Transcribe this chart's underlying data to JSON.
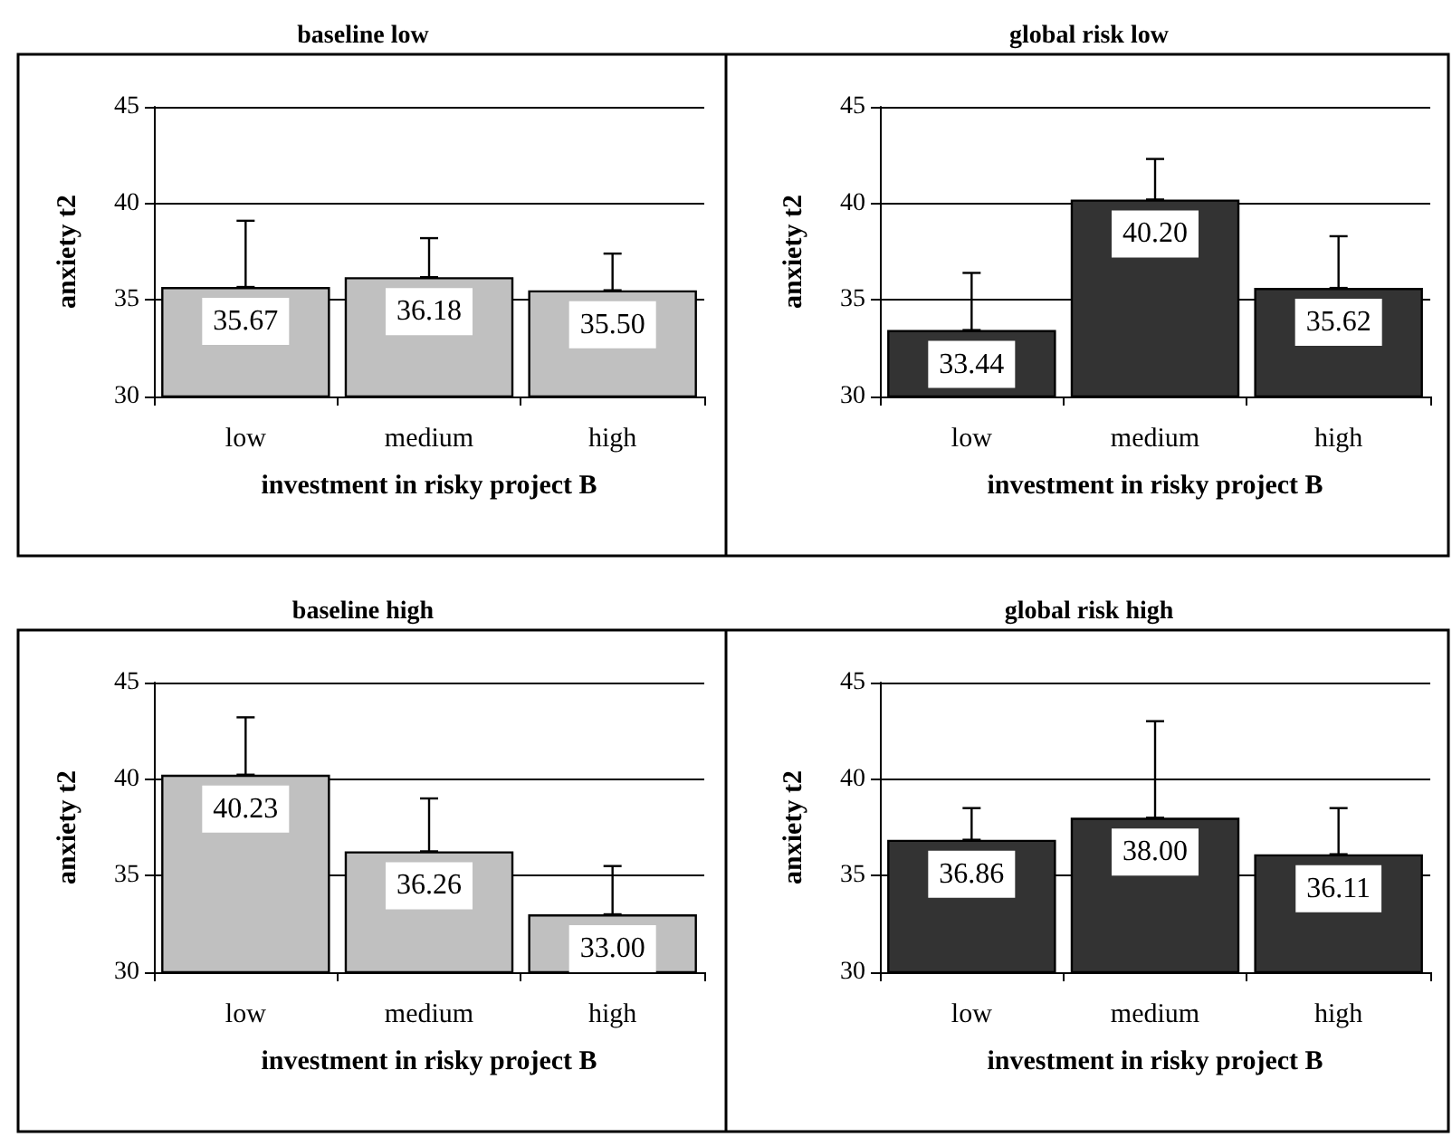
{
  "chart_data": [
    {
      "type": "bar",
      "title": "baseline low",
      "xlabel": "investment in risky project B",
      "ylabel": "anxiety t2",
      "categories": [
        "low",
        "medium",
        "high"
      ],
      "values": [
        35.67,
        36.18,
        35.5
      ],
      "value_labels": [
        "35.67",
        "36.18",
        "35.50"
      ],
      "color": "#c0c0c0",
      "errors": [
        [
          35.67,
          39.1
        ],
        [
          36.18,
          38.2
        ],
        [
          35.5,
          37.4
        ]
      ],
      "ylim": [
        30,
        45
      ],
      "yticks": [
        30,
        35,
        40,
        45
      ],
      "grid": "y"
    },
    {
      "type": "bar",
      "title": "global risk low",
      "xlabel": "investment in risky project B",
      "ylabel": "anxiety t2",
      "categories": [
        "low",
        "medium",
        "high"
      ],
      "values": [
        33.44,
        40.2,
        35.62
      ],
      "value_labels": [
        "33.44",
        "40.20",
        "35.62"
      ],
      "color": "#333333",
      "errors": [
        [
          33.44,
          36.4
        ],
        [
          40.2,
          42.3
        ],
        [
          35.62,
          38.3
        ]
      ],
      "ylim": [
        30,
        45
      ],
      "yticks": [
        30,
        35,
        40,
        45
      ],
      "grid": "y"
    },
    {
      "type": "bar",
      "title": "baseline high",
      "xlabel": "investment in risky project B",
      "ylabel": "anxiety t2",
      "categories": [
        "low",
        "medium",
        "high"
      ],
      "values": [
        40.23,
        36.26,
        33.0
      ],
      "value_labels": [
        "40.23",
        "36.26",
        "33.00"
      ],
      "color": "#c0c0c0",
      "errors": [
        [
          40.23,
          43.2
        ],
        [
          36.26,
          39.0
        ],
        [
          33.0,
          35.5
        ]
      ],
      "ylim": [
        30,
        45
      ],
      "yticks": [
        30,
        35,
        40,
        45
      ],
      "grid": "y"
    },
    {
      "type": "bar",
      "title": "global risk high",
      "xlabel": "investment in risky project B",
      "ylabel": "anxiety t2",
      "categories": [
        "low",
        "medium",
        "high"
      ],
      "values": [
        36.86,
        38.0,
        36.11
      ],
      "value_labels": [
        "36.86",
        "38.00",
        "36.11"
      ],
      "color": "#333333",
      "errors": [
        [
          36.86,
          38.5
        ],
        [
          38.0,
          43.0
        ],
        [
          36.11,
          38.5
        ]
      ],
      "ylim": [
        30,
        45
      ],
      "yticks": [
        30,
        35,
        40,
        45
      ],
      "grid": "y"
    }
  ]
}
